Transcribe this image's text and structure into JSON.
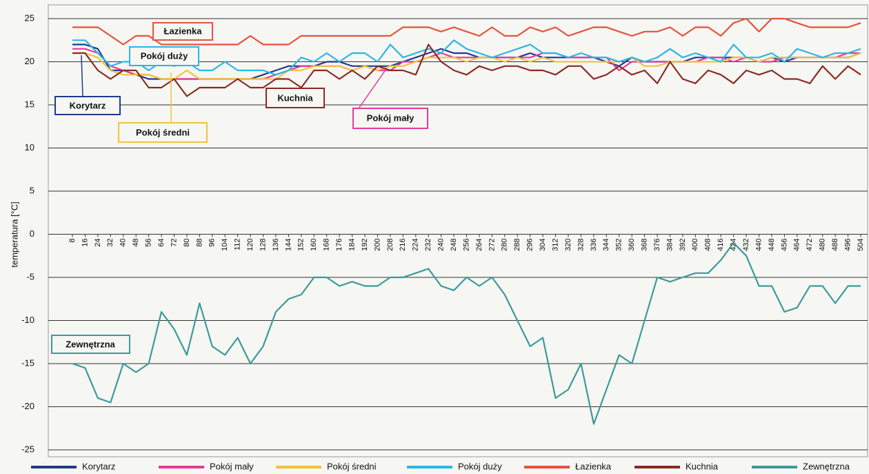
{
  "chart_data": {
    "type": "line",
    "y_label": "temperatura [°C]",
    "categories": [
      8,
      16,
      24,
      32,
      40,
      48,
      56,
      64,
      72,
      80,
      88,
      96,
      104,
      112,
      120,
      128,
      136,
      144,
      152,
      160,
      168,
      176,
      184,
      192,
      200,
      208,
      216,
      224,
      232,
      240,
      248,
      256,
      264,
      272,
      280,
      288,
      296,
      304,
      312,
      320,
      328,
      336,
      344,
      352,
      360,
      368,
      376,
      384,
      392,
      400,
      408,
      416,
      424,
      432,
      440,
      448,
      456,
      464,
      472,
      480,
      488,
      496,
      504
    ],
    "ylim": [
      -25,
      25
    ],
    "yticks": [
      -25,
      -20,
      -15,
      -10,
      -5,
      0,
      5,
      10,
      15,
      20,
      25
    ],
    "grid": true,
    "series": [
      {
        "name": "Korytarz",
        "color": "#1f3a8a",
        "values": [
          22,
          22,
          21.5,
          19,
          19,
          18.5,
          18,
          18,
          18,
          18,
          18,
          18,
          18,
          18,
          18,
          18.5,
          19,
          19.5,
          19.5,
          19.5,
          20,
          20,
          19.5,
          19.5,
          19.5,
          19.5,
          20,
          20.5,
          21,
          21.5,
          21,
          21,
          20.5,
          20.5,
          20.5,
          20.5,
          21,
          20.5,
          20.5,
          20.5,
          20.5,
          20.5,
          20,
          19.5,
          20.5,
          20,
          20,
          20,
          20,
          20.5,
          20.5,
          20.5,
          20.5,
          20.5,
          20,
          20.5,
          20,
          20.5,
          20.5,
          20.5,
          20.5,
          20.5,
          21
        ]
      },
      {
        "name": "Pokój mały",
        "color": "#e6399b",
        "values": [
          21.5,
          21.5,
          21,
          19.5,
          19,
          18.5,
          18.5,
          18,
          18,
          18,
          18,
          18,
          18,
          18,
          18,
          18,
          18.5,
          19,
          19.5,
          19.5,
          19.5,
          19.5,
          19,
          19.5,
          19,
          19,
          20,
          20,
          20.5,
          21,
          20.5,
          20.5,
          20.5,
          20.5,
          20.5,
          20.5,
          20.5,
          21,
          21,
          20.5,
          20.5,
          20.5,
          20.5,
          19,
          20,
          20,
          20,
          20,
          20,
          20,
          20.5,
          20.5,
          20,
          20.5,
          20,
          20,
          20.5,
          20.5,
          20.5,
          20.5,
          20.5,
          21,
          21
        ]
      },
      {
        "name": "Pokój średni",
        "color": "#f2c23e",
        "values": [
          21,
          21,
          20.5,
          19,
          18.5,
          18.5,
          18.5,
          18,
          18,
          19,
          18,
          18,
          18,
          18,
          18,
          18,
          18,
          19,
          19,
          19.5,
          19.5,
          19.5,
          19,
          19.5,
          19,
          19.5,
          19.5,
          20,
          20.5,
          20.5,
          20.5,
          20,
          20.5,
          20.5,
          20,
          20.5,
          20,
          20.5,
          20,
          20,
          20,
          20,
          20,
          20,
          20.5,
          19.5,
          19.5,
          20,
          20,
          20,
          20,
          20,
          20.5,
          20.5,
          20,
          20.5,
          20.5,
          20.5,
          20.5,
          20.5,
          20.5,
          20.5,
          21
        ]
      },
      {
        "name": "Pokój duży",
        "color": "#2bb5e6",
        "values": [
          22.5,
          22.5,
          21,
          19.5,
          20,
          20,
          19,
          20,
          19.5,
          20,
          19,
          19,
          20,
          19,
          19,
          19,
          18.5,
          19,
          20.5,
          20,
          21,
          20,
          21,
          21,
          20,
          22,
          20.5,
          21,
          21.5,
          21,
          22.5,
          21.5,
          21,
          20.5,
          21,
          21.5,
          22,
          21,
          21,
          20.5,
          21,
          20.5,
          20.5,
          20,
          20.5,
          20,
          20.5,
          21.5,
          20.5,
          21,
          20.5,
          20,
          22,
          20.5,
          20.5,
          21,
          20,
          21.5,
          21,
          20.5,
          21,
          21,
          21.5
        ]
      },
      {
        "name": "Łazienka",
        "color": "#e8503a",
        "values": [
          24,
          24,
          24,
          23,
          22,
          23,
          23,
          22,
          22,
          22,
          22,
          22,
          22,
          22,
          23,
          22,
          22,
          22,
          23,
          23,
          23,
          23,
          23,
          23,
          23,
          23,
          24,
          24,
          24,
          23.5,
          24,
          23.5,
          23,
          24,
          23,
          23,
          24,
          23.5,
          24,
          23,
          23.5,
          24,
          24,
          23.5,
          23,
          23.5,
          23.5,
          24,
          23,
          24,
          24,
          23,
          24.5,
          25,
          23.5,
          25,
          25,
          24.5,
          24,
          24,
          24,
          24,
          24.5
        ]
      },
      {
        "name": "Kuchnia",
        "color": "#8b2a22",
        "values": [
          21,
          21,
          19,
          18,
          19,
          19,
          17,
          17,
          18,
          16,
          17,
          17,
          17,
          18,
          17,
          17,
          18,
          18,
          17,
          19,
          19,
          18,
          19,
          18,
          19.5,
          19,
          19,
          18.5,
          22,
          20,
          19,
          18.5,
          19.5,
          19,
          19.5,
          19.5,
          19,
          19,
          18.5,
          19.5,
          19.5,
          18,
          18.5,
          19.5,
          18.5,
          19,
          17.5,
          20,
          18,
          17.5,
          19,
          18.5,
          17.5,
          19,
          18.5,
          19,
          18,
          18,
          17.5,
          19.5,
          18,
          19.5,
          18.5
        ]
      },
      {
        "name": "Zewnętrzna",
        "color": "#3a9a9a",
        "values": [
          -15,
          -15.5,
          -19,
          -19.5,
          -15,
          -16,
          -15,
          -9,
          -11,
          -14,
          -8,
          -13,
          -14,
          -12,
          -15,
          -13,
          -9,
          -7.5,
          -7,
          -5,
          -5,
          -6,
          -5.5,
          -6,
          -6,
          -5,
          -5,
          -4.5,
          -4,
          -6,
          -6.5,
          -5,
          -6,
          -5,
          -7,
          -10,
          -13,
          -12,
          -19,
          -18,
          -15,
          -22,
          -18,
          -14,
          -15,
          -10,
          -5,
          -5.5,
          -5,
          -4.5,
          -4.5,
          -3,
          -1,
          -2.5,
          -6,
          -6,
          -9,
          -8.5,
          -6,
          -6,
          -8,
          -6,
          -6
        ]
      }
    ]
  }
}
